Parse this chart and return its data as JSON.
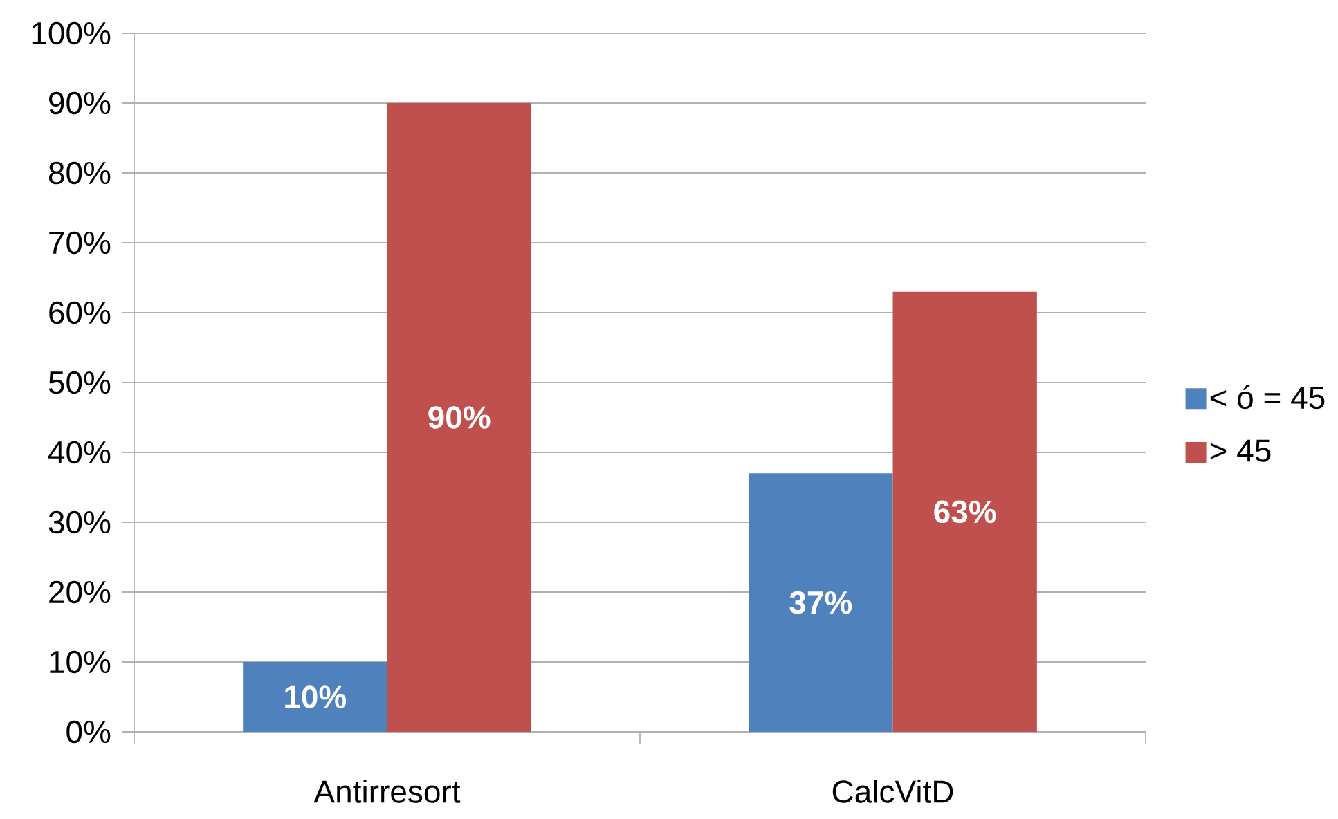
{
  "chart_data": {
    "type": "bar",
    "categories": [
      "Antirresort",
      "CalcVitD"
    ],
    "series": [
      {
        "name": "< ó = 45",
        "color": "#4f81bd",
        "values": [
          10,
          37
        ],
        "value_labels": [
          "10%",
          "37%"
        ]
      },
      {
        "name": "> 45",
        "color": "#c0504d",
        "values": [
          90,
          63
        ],
        "value_labels": [
          "90%",
          "63%"
        ]
      }
    ],
    "ylim": [
      0,
      100
    ],
    "yticks": [
      {
        "value": 0,
        "label": "0%"
      },
      {
        "value": 10,
        "label": "10%"
      },
      {
        "value": 20,
        "label": "20%"
      },
      {
        "value": 30,
        "label": "30%"
      },
      {
        "value": 40,
        "label": "40%"
      },
      {
        "value": 50,
        "label": "50%"
      },
      {
        "value": 60,
        "label": "60%"
      },
      {
        "value": 70,
        "label": "70%"
      },
      {
        "value": 80,
        "label": "80%"
      },
      {
        "value": 90,
        "label": "90%"
      },
      {
        "value": 100,
        "label": "100%"
      }
    ],
    "grid": "y",
    "legend": "right"
  }
}
